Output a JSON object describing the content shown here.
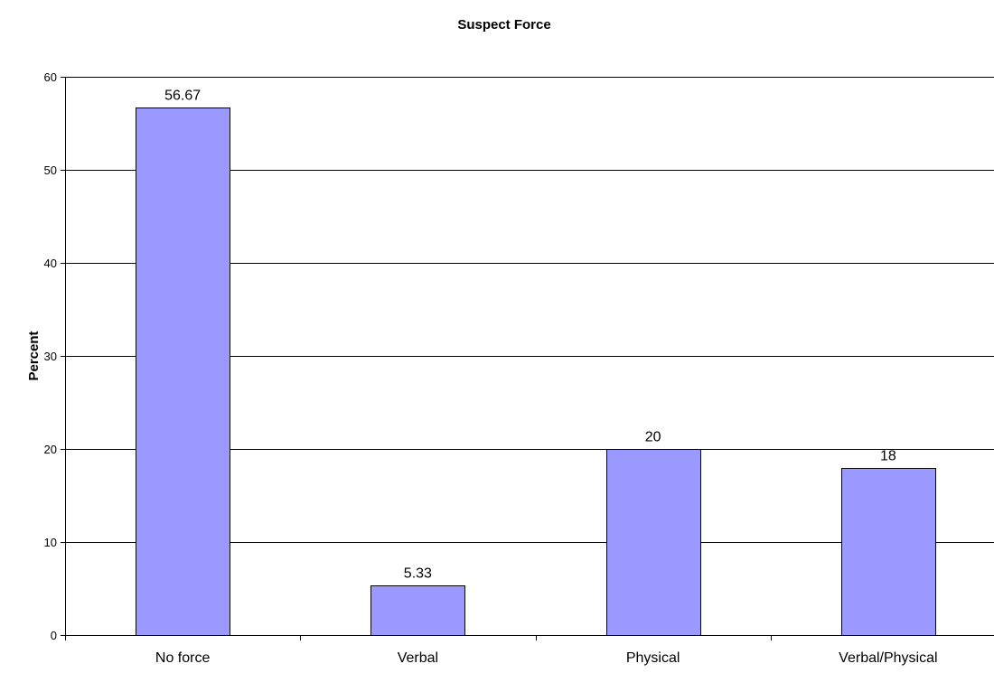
{
  "chart_data": {
    "type": "bar",
    "title": "Suspect Force",
    "xlabel": "",
    "ylabel": "Percent",
    "categories": [
      "No force",
      "Verbal",
      "Physical",
      "Verbal/Physical"
    ],
    "values": [
      56.67,
      5.33,
      20,
      18
    ],
    "data_labels": [
      "56.67",
      "5.33",
      "20",
      "18"
    ],
    "ylim": [
      0,
      60
    ],
    "yticks": [
      0,
      10,
      20,
      30,
      40,
      50,
      60
    ],
    "grid": true,
    "legend": "none",
    "colors": {
      "bar_fill": "#9999ff",
      "bar_stroke": "#000000",
      "grid": "#000000",
      "axis": "#000000"
    }
  }
}
